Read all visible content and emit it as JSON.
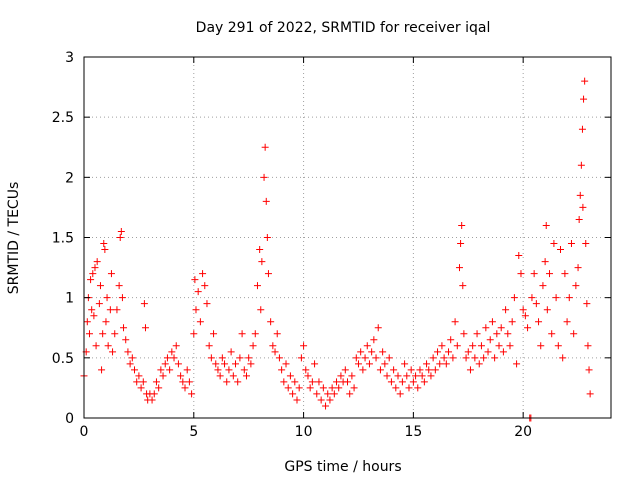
{
  "chart_data": {
    "type": "scatter",
    "title": "Day 291 of 2022, SRMTID for receiver iqal",
    "xlabel": "GPS time / hours",
    "ylabel": "SRMTID / TECUs",
    "xlim": [
      0,
      24
    ],
    "ylim": [
      0,
      3
    ],
    "xticks": [
      0,
      5,
      10,
      15,
      20
    ],
    "yticks": [
      0,
      0.5,
      1,
      1.5,
      2,
      2.5,
      3
    ],
    "xtick_labels": [
      "0",
      "5",
      "10",
      "15",
      "20"
    ],
    "ytick_labels": [
      "0",
      "0.5",
      "1",
      "1.5",
      "2",
      "2.5",
      "3"
    ],
    "grid": true,
    "marker": "+",
    "color": "#ff0000",
    "series": [
      {
        "name": "SRMTID",
        "points": [
          [
            0.0,
            0.35
          ],
          [
            0.1,
            0.55
          ],
          [
            0.15,
            0.8
          ],
          [
            0.2,
            1.0
          ],
          [
            0.25,
            0.7
          ],
          [
            0.3,
            1.15
          ],
          [
            0.35,
            0.9
          ],
          [
            0.4,
            1.2
          ],
          [
            0.45,
            0.85
          ],
          [
            0.5,
            1.25
          ],
          [
            0.55,
            0.6
          ],
          [
            0.6,
            1.3
          ],
          [
            0.7,
            0.95
          ],
          [
            0.75,
            1.1
          ],
          [
            0.8,
            0.4
          ],
          [
            0.85,
            0.7
          ],
          [
            0.9,
            1.45
          ],
          [
            0.95,
            1.4
          ],
          [
            1.0,
            0.8
          ],
          [
            1.05,
            1.0
          ],
          [
            1.1,
            0.6
          ],
          [
            1.2,
            0.9
          ],
          [
            1.25,
            1.2
          ],
          [
            1.3,
            0.55
          ],
          [
            1.4,
            0.7
          ],
          [
            1.5,
            0.9
          ],
          [
            1.6,
            1.1
          ],
          [
            1.65,
            1.5
          ],
          [
            1.7,
            1.55
          ],
          [
            1.75,
            1.0
          ],
          [
            1.8,
            0.75
          ],
          [
            1.9,
            0.65
          ],
          [
            2.0,
            0.55
          ],
          [
            2.1,
            0.45
          ],
          [
            2.2,
            0.5
          ],
          [
            2.3,
            0.4
          ],
          [
            2.4,
            0.3
          ],
          [
            2.5,
            0.35
          ],
          [
            2.6,
            0.25
          ],
          [
            2.7,
            0.3
          ],
          [
            2.75,
            0.95
          ],
          [
            2.8,
            0.75
          ],
          [
            2.85,
            0.2
          ],
          [
            2.9,
            0.15
          ],
          [
            3.0,
            0.2
          ],
          [
            3.1,
            0.15
          ],
          [
            3.2,
            0.2
          ],
          [
            3.3,
            0.3
          ],
          [
            3.4,
            0.25
          ],
          [
            3.5,
            0.4
          ],
          [
            3.6,
            0.35
          ],
          [
            3.7,
            0.45
          ],
          [
            3.8,
            0.5
          ],
          [
            3.9,
            0.4
          ],
          [
            4.0,
            0.55
          ],
          [
            4.1,
            0.5
          ],
          [
            4.2,
            0.6
          ],
          [
            4.3,
            0.45
          ],
          [
            4.4,
            0.35
          ],
          [
            4.5,
            0.3
          ],
          [
            4.6,
            0.25
          ],
          [
            4.7,
            0.4
          ],
          [
            4.8,
            0.3
          ],
          [
            4.9,
            0.2
          ],
          [
            5.0,
            0.7
          ],
          [
            5.05,
            1.15
          ],
          [
            5.1,
            0.9
          ],
          [
            5.2,
            1.05
          ],
          [
            5.3,
            0.8
          ],
          [
            5.4,
            1.2
          ],
          [
            5.5,
            1.1
          ],
          [
            5.6,
            0.95
          ],
          [
            5.7,
            0.6
          ],
          [
            5.8,
            0.5
          ],
          [
            5.9,
            0.7
          ],
          [
            6.0,
            0.45
          ],
          [
            6.1,
            0.4
          ],
          [
            6.2,
            0.35
          ],
          [
            6.3,
            0.5
          ],
          [
            6.4,
            0.45
          ],
          [
            6.5,
            0.3
          ],
          [
            6.6,
            0.4
          ],
          [
            6.7,
            0.55
          ],
          [
            6.8,
            0.35
          ],
          [
            6.9,
            0.45
          ],
          [
            7.0,
            0.3
          ],
          [
            7.1,
            0.5
          ],
          [
            7.2,
            0.7
          ],
          [
            7.3,
            0.4
          ],
          [
            7.4,
            0.35
          ],
          [
            7.5,
            0.5
          ],
          [
            7.6,
            0.45
          ],
          [
            7.7,
            0.6
          ],
          [
            7.8,
            0.7
          ],
          [
            7.9,
            1.1
          ],
          [
            8.0,
            1.4
          ],
          [
            8.05,
            0.9
          ],
          [
            8.1,
            1.3
          ],
          [
            8.2,
            2.0
          ],
          [
            8.25,
            2.25
          ],
          [
            8.3,
            1.8
          ],
          [
            8.35,
            1.5
          ],
          [
            8.4,
            1.2
          ],
          [
            8.5,
            0.8
          ],
          [
            8.6,
            0.6
          ],
          [
            8.7,
            0.55
          ],
          [
            8.8,
            0.7
          ],
          [
            8.9,
            0.5
          ],
          [
            9.0,
            0.4
          ],
          [
            9.1,
            0.3
          ],
          [
            9.2,
            0.45
          ],
          [
            9.3,
            0.25
          ],
          [
            9.4,
            0.35
          ],
          [
            9.5,
            0.2
          ],
          [
            9.6,
            0.3
          ],
          [
            9.7,
            0.15
          ],
          [
            9.8,
            0.25
          ],
          [
            9.9,
            0.5
          ],
          [
            10.0,
            0.6
          ],
          [
            10.1,
            0.4
          ],
          [
            10.2,
            0.35
          ],
          [
            10.3,
            0.25
          ],
          [
            10.4,
            0.3
          ],
          [
            10.5,
            0.45
          ],
          [
            10.6,
            0.2
          ],
          [
            10.7,
            0.3
          ],
          [
            10.8,
            0.15
          ],
          [
            10.9,
            0.25
          ],
          [
            11.0,
            0.1
          ],
          [
            11.1,
            0.2
          ],
          [
            11.2,
            0.15
          ],
          [
            11.3,
            0.25
          ],
          [
            11.4,
            0.2
          ],
          [
            11.5,
            0.3
          ],
          [
            11.6,
            0.25
          ],
          [
            11.7,
            0.35
          ],
          [
            11.8,
            0.3
          ],
          [
            11.9,
            0.4
          ],
          [
            12.0,
            0.3
          ],
          [
            12.1,
            0.2
          ],
          [
            12.2,
            0.35
          ],
          [
            12.3,
            0.25
          ],
          [
            12.4,
            0.5
          ],
          [
            12.5,
            0.45
          ],
          [
            12.6,
            0.55
          ],
          [
            12.7,
            0.4
          ],
          [
            12.8,
            0.5
          ],
          [
            12.9,
            0.6
          ],
          [
            13.0,
            0.45
          ],
          [
            13.1,
            0.55
          ],
          [
            13.2,
            0.65
          ],
          [
            13.3,
            0.5
          ],
          [
            13.4,
            0.75
          ],
          [
            13.5,
            0.4
          ],
          [
            13.6,
            0.55
          ],
          [
            13.7,
            0.45
          ],
          [
            13.8,
            0.35
          ],
          [
            13.9,
            0.5
          ],
          [
            14.0,
            0.3
          ],
          [
            14.1,
            0.4
          ],
          [
            14.2,
            0.25
          ],
          [
            14.3,
            0.35
          ],
          [
            14.4,
            0.2
          ],
          [
            14.5,
            0.3
          ],
          [
            14.6,
            0.45
          ],
          [
            14.7,
            0.35
          ],
          [
            14.8,
            0.25
          ],
          [
            14.9,
            0.4
          ],
          [
            15.0,
            0.3
          ],
          [
            15.1,
            0.35
          ],
          [
            15.2,
            0.25
          ],
          [
            15.3,
            0.4
          ],
          [
            15.4,
            0.35
          ],
          [
            15.5,
            0.3
          ],
          [
            15.6,
            0.45
          ],
          [
            15.7,
            0.4
          ],
          [
            15.8,
            0.35
          ],
          [
            15.9,
            0.5
          ],
          [
            16.0,
            0.4
          ],
          [
            16.1,
            0.55
          ],
          [
            16.2,
            0.45
          ],
          [
            16.3,
            0.6
          ],
          [
            16.4,
            0.5
          ],
          [
            16.5,
            0.45
          ],
          [
            16.6,
            0.55
          ],
          [
            16.7,
            0.65
          ],
          [
            16.8,
            0.5
          ],
          [
            16.9,
            0.8
          ],
          [
            17.0,
            0.6
          ],
          [
            17.1,
            1.25
          ],
          [
            17.15,
            1.45
          ],
          [
            17.2,
            1.6
          ],
          [
            17.25,
            1.1
          ],
          [
            17.3,
            0.7
          ],
          [
            17.4,
            0.5
          ],
          [
            17.5,
            0.55
          ],
          [
            17.6,
            0.4
          ],
          [
            17.7,
            0.6
          ],
          [
            17.8,
            0.5
          ],
          [
            17.9,
            0.7
          ],
          [
            18.0,
            0.45
          ],
          [
            18.1,
            0.6
          ],
          [
            18.2,
            0.5
          ],
          [
            18.3,
            0.75
          ],
          [
            18.4,
            0.55
          ],
          [
            18.5,
            0.65
          ],
          [
            18.6,
            0.8
          ],
          [
            18.7,
            0.5
          ],
          [
            18.8,
            0.7
          ],
          [
            18.9,
            0.6
          ],
          [
            19.0,
            0.75
          ],
          [
            19.1,
            0.55
          ],
          [
            19.2,
            0.9
          ],
          [
            19.3,
            0.7
          ],
          [
            19.4,
            0.6
          ],
          [
            19.5,
            0.8
          ],
          [
            19.6,
            1.0
          ],
          [
            19.7,
            0.45
          ],
          [
            19.8,
            1.35
          ],
          [
            19.9,
            1.2
          ],
          [
            20.0,
            0.9
          ],
          [
            20.1,
            0.85
          ],
          [
            20.2,
            0.75
          ],
          [
            20.3,
            0.0
          ],
          [
            20.35,
            0.0
          ],
          [
            20.4,
            1.0
          ],
          [
            20.5,
            1.2
          ],
          [
            20.6,
            0.95
          ],
          [
            20.7,
            0.8
          ],
          [
            20.8,
            0.6
          ],
          [
            20.9,
            1.1
          ],
          [
            21.0,
            1.3
          ],
          [
            21.05,
            1.6
          ],
          [
            21.1,
            0.9
          ],
          [
            21.2,
            1.2
          ],
          [
            21.3,
            0.7
          ],
          [
            21.4,
            1.45
          ],
          [
            21.5,
            1.0
          ],
          [
            21.6,
            0.6
          ],
          [
            21.7,
            1.4
          ],
          [
            21.8,
            0.5
          ],
          [
            21.9,
            1.2
          ],
          [
            22.0,
            0.8
          ],
          [
            22.1,
            1.0
          ],
          [
            22.2,
            1.45
          ],
          [
            22.3,
            0.7
          ],
          [
            22.4,
            1.1
          ],
          [
            22.5,
            1.25
          ],
          [
            22.55,
            1.65
          ],
          [
            22.6,
            1.85
          ],
          [
            22.65,
            2.1
          ],
          [
            22.7,
            2.4
          ],
          [
            22.75,
            2.65
          ],
          [
            22.8,
            2.8
          ],
          [
            22.85,
            1.45
          ],
          [
            22.9,
            0.95
          ],
          [
            22.95,
            0.6
          ],
          [
            23.0,
            0.4
          ],
          [
            23.05,
            0.2
          ],
          [
            22.72,
            1.75
          ]
        ]
      }
    ]
  }
}
